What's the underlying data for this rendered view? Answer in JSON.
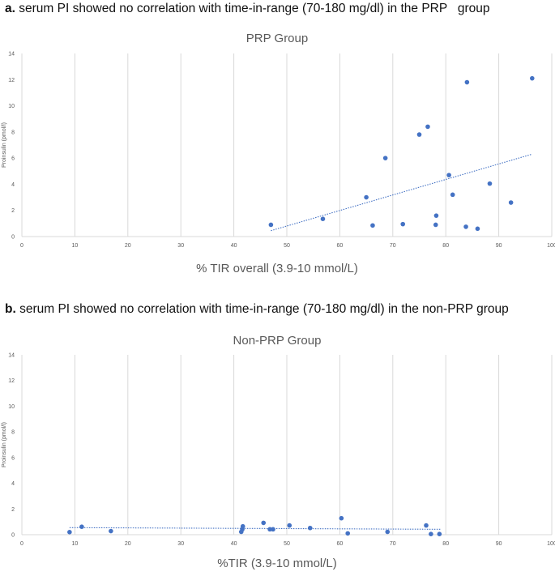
{
  "headings": [
    {
      "letter": "a.",
      "text": " serum PI showed no correlation with time-in-range (70-180 mg/dl) in the PRP   group"
    },
    {
      "letter": "b.",
      "text": " serum PI showed no correlation with time-in-range (70-180 mg/dl) in the non-PRP group"
    }
  ],
  "colors": {
    "point": "#4472C4",
    "trend": "#4472C4",
    "grid": "#d9d9d9",
    "tick": "#595959",
    "title": "#595959"
  },
  "chart_data": [
    {
      "type": "scatter",
      "title": "PRP Group",
      "xlabel": "% TIR overall (3.9-10 mmol/L)",
      "ylabel": "Proinsulin (pmol/l)",
      "xlim": [
        0,
        100
      ],
      "ylim": [
        0,
        14
      ],
      "xticks": [
        "0",
        "10",
        "20",
        "30",
        "40",
        "50",
        "60",
        "70",
        "80",
        "90",
        "100"
      ],
      "yticks": [
        "0",
        "2",
        "4",
        "6",
        "8",
        "10",
        "12",
        "14"
      ],
      "grid": "vertical",
      "trendline": {
        "x": [
          47,
          96.3
        ],
        "y": [
          0.45,
          6.3
        ],
        "style": "dotted linear"
      },
      "points": [
        {
          "x": 47,
          "y": 0.9
        },
        {
          "x": 56.8,
          "y": 1.35
        },
        {
          "x": 65,
          "y": 3.0
        },
        {
          "x": 66.2,
          "y": 0.85
        },
        {
          "x": 68.6,
          "y": 6.0
        },
        {
          "x": 71.9,
          "y": 0.95
        },
        {
          "x": 75,
          "y": 7.8
        },
        {
          "x": 76.6,
          "y": 8.4
        },
        {
          "x": 78.2,
          "y": 1.6
        },
        {
          "x": 78.1,
          "y": 0.9
        },
        {
          "x": 80.6,
          "y": 4.7
        },
        {
          "x": 81.3,
          "y": 3.2
        },
        {
          "x": 83.8,
          "y": 0.75
        },
        {
          "x": 84,
          "y": 11.8
        },
        {
          "x": 86,
          "y": 0.6
        },
        {
          "x": 88.3,
          "y": 4.05
        },
        {
          "x": 92.3,
          "y": 2.6
        },
        {
          "x": 96.3,
          "y": 12.1
        }
      ]
    },
    {
      "type": "scatter",
      "title": "Non-PRP Group",
      "xlabel": "%TIR (3.9-10 mmol/L)",
      "ylabel": "Proinsulin (pmol/l)",
      "xlim": [
        0,
        100
      ],
      "ylim": [
        0,
        14
      ],
      "xticks": [
        "0",
        "10",
        "20",
        "30",
        "40",
        "50",
        "60",
        "70",
        "80",
        "90",
        "100"
      ],
      "yticks": [
        "0",
        "2",
        "4",
        "6",
        "8",
        "10",
        "12",
        "14"
      ],
      "grid": "vertical",
      "trendline": {
        "x": [
          9,
          79
        ],
        "y": [
          0.55,
          0.42
        ],
        "style": "dotted linear"
      },
      "points": [
        {
          "x": 9,
          "y": 0.2
        },
        {
          "x": 11.3,
          "y": 0.62
        },
        {
          "x": 16.8,
          "y": 0.28
        },
        {
          "x": 41.4,
          "y": 0.22
        },
        {
          "x": 41.6,
          "y": 0.42
        },
        {
          "x": 41.7,
          "y": 0.65
        },
        {
          "x": 45.6,
          "y": 0.92
        },
        {
          "x": 46.8,
          "y": 0.42
        },
        {
          "x": 47.4,
          "y": 0.42
        },
        {
          "x": 50.5,
          "y": 0.72
        },
        {
          "x": 54.4,
          "y": 0.52
        },
        {
          "x": 60.3,
          "y": 1.28
        },
        {
          "x": 61.5,
          "y": 0.1
        },
        {
          "x": 69,
          "y": 0.22
        },
        {
          "x": 76.3,
          "y": 0.72
        },
        {
          "x": 77.2,
          "y": 0.05
        },
        {
          "x": 78.8,
          "y": 0.05
        }
      ]
    }
  ]
}
